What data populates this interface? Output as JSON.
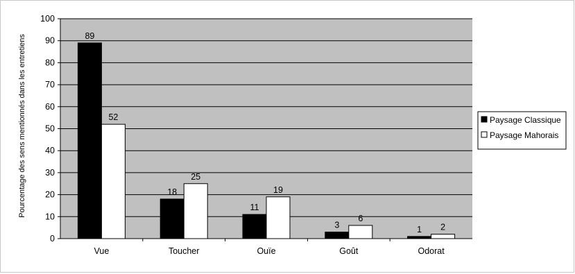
{
  "chart_data": {
    "type": "bar",
    "title": "",
    "xlabel": "",
    "ylabel": "Pourcentage des sens mentionnés dans les entretiens",
    "ylim": [
      0,
      100
    ],
    "yticks": [
      0,
      10,
      20,
      30,
      40,
      50,
      60,
      70,
      80,
      90,
      100
    ],
    "grid": true,
    "legend_position": "right",
    "plot_background": "#c0c0c0",
    "categories": [
      "Vue",
      "Toucher",
      "Ouïe",
      "Goût",
      "Odorat"
    ],
    "series": [
      {
        "name": "Paysage Classique",
        "color": "#000000",
        "values": [
          89,
          18,
          11,
          3,
          1
        ]
      },
      {
        "name": "Paysage Mahorais",
        "color": "#ffffff",
        "values": [
          52,
          25,
          19,
          6,
          2
        ]
      }
    ]
  }
}
